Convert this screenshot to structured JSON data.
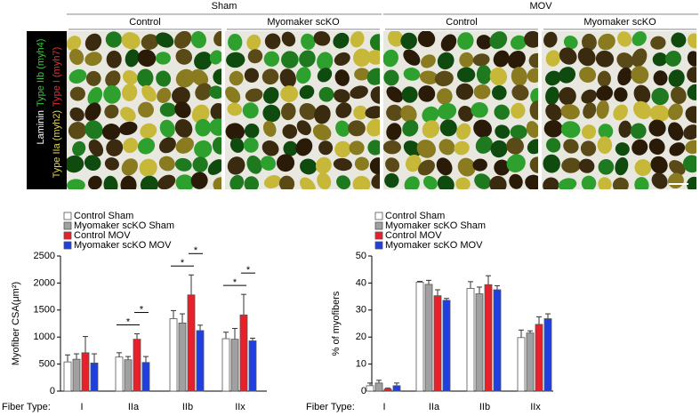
{
  "images": {
    "groups": [
      {
        "label": "Sham",
        "panels": [
          "Control",
          "Myomaker scKO"
        ]
      },
      {
        "label": "MOV",
        "panels": [
          "Control",
          "Myomaker scKO"
        ]
      }
    ],
    "stain_labels": [
      {
        "text": "Laminin",
        "color": "#ffffff"
      },
      {
        "text": "Type IIb (myh4)",
        "color": "#3ec43e"
      },
      {
        "text": "Type IIa (myh2)",
        "color": "#e6d84a"
      },
      {
        "text": "Type I (myh7)",
        "color": "#e83030"
      }
    ]
  },
  "chart_data": [
    {
      "type": "bar",
      "y_label": "Myofiber CSA(μm²)",
      "x_label": "Fiber Type:",
      "categories": [
        "I",
        "IIa",
        "IIb",
        "IIx"
      ],
      "ylim": [
        0,
        2500
      ],
      "yticks": [
        0,
        500,
        1000,
        1500,
        2000,
        2500
      ],
      "series": [
        {
          "name": "Control Sham",
          "color": "#ffffff",
          "values": [
            540,
            630,
            1340,
            970
          ],
          "errors": [
            130,
            80,
            150,
            120
          ]
        },
        {
          "name": "Myomaker scKO Sham",
          "color": "#a0a0a0",
          "values": [
            590,
            580,
            1260,
            960
          ],
          "errors": [
            100,
            60,
            170,
            200
          ]
        },
        {
          "name": "Control MOV",
          "color": "#e8202a",
          "values": [
            710,
            960,
            1780,
            1410
          ],
          "errors": [
            300,
            100,
            370,
            380
          ]
        },
        {
          "name": "Myomaker scKO MOV",
          "color": "#1f3fe0",
          "values": [
            520,
            530,
            1120,
            930
          ],
          "errors": [
            170,
            110,
            100,
            50
          ]
        }
      ],
      "significance": [
        {
          "category": "IIa",
          "from": "Control Sham",
          "to": "Control MOV",
          "label": "*"
        },
        {
          "category": "IIa",
          "from": "Control MOV",
          "to": "Myomaker scKO MOV",
          "label": "*"
        },
        {
          "category": "IIb",
          "from": "Control Sham",
          "to": "Control MOV",
          "label": "*"
        },
        {
          "category": "IIb",
          "from": "Control MOV",
          "to": "Myomaker scKO MOV",
          "label": "*"
        },
        {
          "category": "IIx",
          "from": "Control Sham",
          "to": "Control MOV",
          "label": "*"
        },
        {
          "category": "IIx",
          "from": "Control MOV",
          "to": "Myomaker scKO MOV",
          "label": "*"
        }
      ]
    },
    {
      "type": "bar",
      "y_label": "% of myofibers",
      "x_label": "Fiber Type:",
      "categories": [
        "I",
        "IIa",
        "IIb",
        "IIx"
      ],
      "ylim": [
        0,
        50
      ],
      "yticks": [
        0,
        10,
        20,
        30,
        40,
        50
      ],
      "series": [
        {
          "name": "Control Sham",
          "color": "#ffffff",
          "values": [
            2,
            40.3,
            38,
            19.8
          ],
          "errors": [
            1,
            0.3,
            2.5,
            2.8
          ]
        },
        {
          "name": "Myomaker scKO Sham",
          "color": "#a0a0a0",
          "values": [
            3,
            39.5,
            36,
            21.5
          ],
          "errors": [
            1,
            1.5,
            2.5,
            0.8
          ]
        },
        {
          "name": "Control MOV",
          "color": "#e8202a",
          "values": [
            0.8,
            35.3,
            39.4,
            24.7
          ],
          "errors": [
            0.3,
            2.2,
            3.3,
            2.8
          ]
        },
        {
          "name": "Myomaker scKO MOV",
          "color": "#1f3fe0",
          "values": [
            2,
            33.6,
            37.5,
            26.8
          ],
          "errors": [
            1,
            0.7,
            1.5,
            1.8
          ]
        }
      ]
    }
  ]
}
